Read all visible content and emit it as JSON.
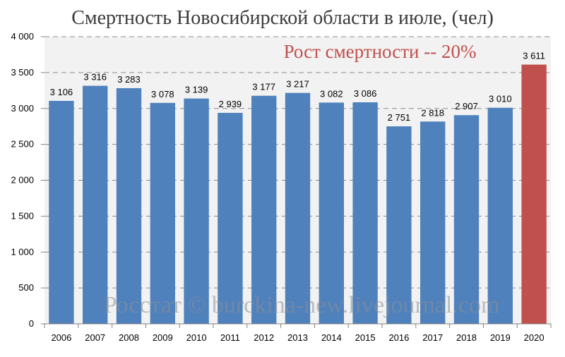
{
  "chart_data": {
    "type": "bar",
    "title": "Смертность Новосибирской области в июле, (чел)",
    "xlabel": "",
    "ylabel": "",
    "categories": [
      "2006",
      "2007",
      "2008",
      "2009",
      "2010",
      "2011",
      "2012",
      "2013",
      "2014",
      "2015",
      "2016",
      "2017",
      "2018",
      "2019",
      "2020"
    ],
    "values": [
      3106,
      3316,
      3283,
      3078,
      3139,
      2939,
      3177,
      3217,
      3082,
      3086,
      2751,
      2818,
      2907,
      3010,
      3611
    ],
    "data_labels": [
      "3 106",
      "3 316",
      "3 283",
      "3 078",
      "3 139",
      "2 939",
      "3 177",
      "3 217",
      "3 082",
      "3 086",
      "2 751",
      "2 818",
      "2 907",
      "3 010",
      "3 611"
    ],
    "ylim": [
      0,
      4000
    ],
    "yticks": [
      0,
      500,
      1000,
      1500,
      2000,
      2500,
      3000,
      3500,
      4000
    ],
    "ytick_labels": [
      "0",
      "500",
      "1 000",
      "1 500",
      "2 000",
      "2 500",
      "3 000",
      "3 500",
      "4 000"
    ],
    "grid": "dashed horizontal",
    "legend": "none",
    "annotation": "Рост смертности -- 20%",
    "watermark": "Росстат © burckina-new.livejournal.com",
    "colors": {
      "bar": "#4f81bd",
      "highlight_bar": "#c0504d",
      "highlight_category": "2020",
      "annotation": "#c0504d",
      "plot_background": "#f2f2f2",
      "grid": "#8c8c8c"
    }
  }
}
